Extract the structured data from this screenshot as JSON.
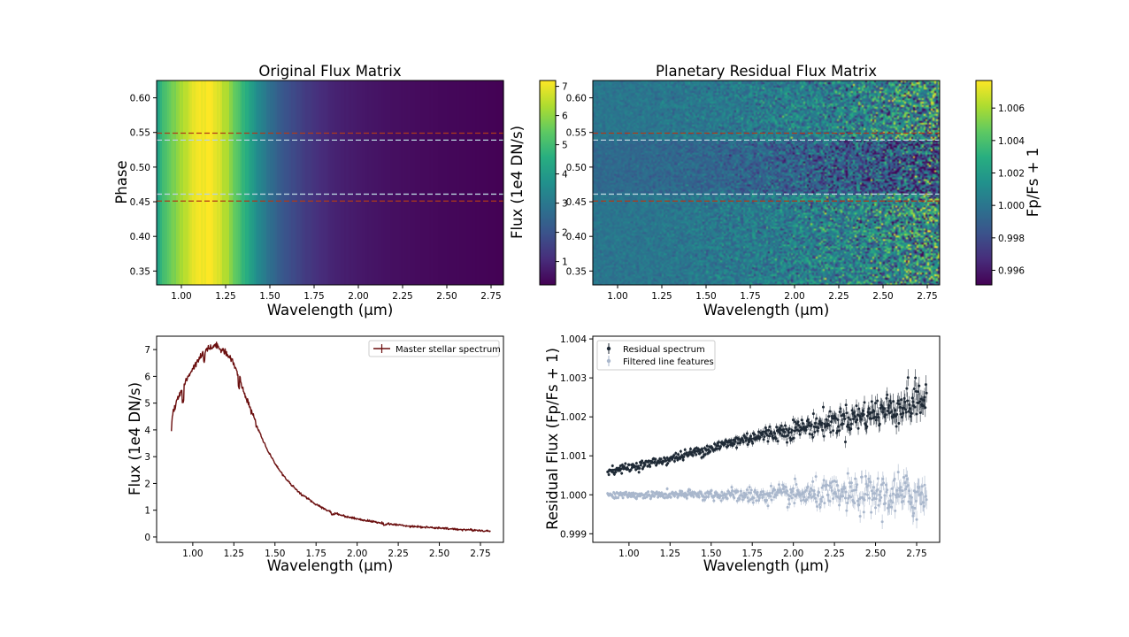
{
  "chart_data": [
    {
      "type": "heatmap",
      "title": "Original Flux Matrix",
      "xlabel": "Wavelength (μm)",
      "ylabel": "Phase",
      "xlim": [
        0.86,
        2.82
      ],
      "ylim": [
        0.33,
        0.625
      ],
      "x_ticks": [
        "1.00",
        "1.25",
        "1.50",
        "1.75",
        "2.00",
        "2.25",
        "2.50",
        "2.75"
      ],
      "y_ticks": [
        "0.35",
        "0.40",
        "0.45",
        "0.50",
        "0.55",
        "0.60"
      ],
      "colormap": "viridis",
      "colorbar": {
        "label": "Flux (1e4 DN/s)",
        "range": [
          0.2,
          7.2
        ],
        "ticks": [
          "1",
          "2",
          "3",
          "4",
          "5",
          "6",
          "7"
        ]
      },
      "hlines": [
        {
          "y": 0.549,
          "color": "#b03a1a"
        },
        {
          "y": 0.539,
          "color": "#b9d3de"
        },
        {
          "y": 0.461,
          "color": "#b9d3de"
        },
        {
          "y": 0.451,
          "color": "#b03a1a"
        }
      ]
    },
    {
      "type": "heatmap",
      "title": "Planetary Residual Flux Matrix",
      "xlabel": "Wavelength (μm)",
      "ylabel": "",
      "xlim": [
        0.86,
        2.82
      ],
      "ylim": [
        0.33,
        0.625
      ],
      "x_ticks": [
        "1.00",
        "1.25",
        "1.50",
        "1.75",
        "2.00",
        "2.25",
        "2.50",
        "2.75"
      ],
      "y_ticks": [
        "0.35",
        "0.40",
        "0.45",
        "0.50",
        "0.55",
        "0.60"
      ],
      "colormap": "viridis",
      "colorbar": {
        "label": "Fp/Fs + 1",
        "range": [
          0.9951,
          1.0077
        ],
        "ticks": [
          "0.996",
          "0.998",
          "1.000",
          "1.002",
          "1.004",
          "1.006"
        ]
      },
      "hlines": [
        {
          "y": 0.549,
          "color": "#b03a1a"
        },
        {
          "y": 0.539,
          "color": "#b9d3de"
        },
        {
          "y": 0.461,
          "color": "#b9d3de"
        },
        {
          "y": 0.451,
          "color": "#b03a1a"
        }
      ]
    },
    {
      "type": "line",
      "title": "",
      "xlabel": "Wavelength (μm)",
      "ylabel": "Flux (1e4 DN/s)",
      "xlim": [
        0.78,
        2.89
      ],
      "ylim": [
        -0.2,
        7.5
      ],
      "x_ticks": [
        "1.00",
        "1.25",
        "1.50",
        "1.75",
        "2.00",
        "2.25",
        "2.50",
        "2.75"
      ],
      "y_ticks": [
        "0",
        "1",
        "2",
        "3",
        "4",
        "5",
        "6",
        "7"
      ],
      "legend": "top-right",
      "series": [
        {
          "name": "Master stellar spectrum",
          "color": "#6b0f0f",
          "x": [
            0.87,
            0.875,
            0.88,
            0.9,
            0.92,
            0.95,
            0.98,
            1.0,
            1.02,
            1.04,
            1.06,
            1.08,
            1.1,
            1.12,
            1.14,
            1.16,
            1.18,
            1.2,
            1.22,
            1.24,
            1.26,
            1.28,
            1.3,
            1.35,
            1.4,
            1.45,
            1.5,
            1.55,
            1.6,
            1.65,
            1.7,
            1.75,
            1.8,
            1.85,
            1.9,
            1.95,
            2.0,
            2.05,
            2.1,
            2.15,
            2.2,
            2.3,
            2.4,
            2.5,
            2.6,
            2.7,
            2.81
          ],
          "y": [
            4.0,
            4.4,
            4.7,
            5.0,
            5.3,
            5.7,
            6.1,
            6.3,
            6.5,
            6.7,
            6.85,
            7.0,
            7.05,
            7.1,
            7.15,
            7.1,
            7.0,
            6.9,
            6.75,
            6.6,
            6.3,
            6.0,
            5.6,
            4.8,
            4.0,
            3.3,
            2.75,
            2.3,
            1.95,
            1.65,
            1.42,
            1.22,
            1.05,
            0.92,
            0.82,
            0.74,
            0.68,
            0.62,
            0.57,
            0.52,
            0.48,
            0.42,
            0.37,
            0.33,
            0.29,
            0.26,
            0.22
          ]
        }
      ]
    },
    {
      "type": "scatter",
      "title": "",
      "xlabel": "Wavelength (μm)",
      "ylabel": "Residual Flux (Fp/Fs + 1)",
      "xlim": [
        0.78,
        2.89
      ],
      "ylim": [
        0.99878,
        1.00407
      ],
      "x_ticks": [
        "1.00",
        "1.25",
        "1.50",
        "1.75",
        "2.00",
        "2.25",
        "2.50",
        "2.75"
      ],
      "y_ticks": [
        "0.999",
        "1.000",
        "1.001",
        "1.002",
        "1.003",
        "1.004"
      ],
      "legend": "top-left",
      "series": [
        {
          "name": "Residual spectrum",
          "color": "#1f2a36",
          "x": [
            0.87,
            1.0,
            1.25,
            1.5,
            1.75,
            2.0,
            2.25,
            2.5,
            2.75,
            2.81
          ],
          "y": [
            1.00062,
            1.0007,
            1.00092,
            1.0012,
            1.00148,
            1.00168,
            1.00188,
            1.0021,
            1.0024,
            1.0025
          ]
        },
        {
          "name": "Filtered line features",
          "color": "#a9b7cc",
          "x": [
            0.87,
            1.0,
            1.25,
            1.5,
            1.75,
            2.0,
            2.25,
            2.5,
            2.75,
            2.81
          ],
          "y": [
            1.0,
            0.99999,
            1.0,
            1.0,
            0.99998,
            1.0,
            1.0,
            0.99999,
            0.99997,
            0.99996
          ]
        }
      ]
    }
  ]
}
